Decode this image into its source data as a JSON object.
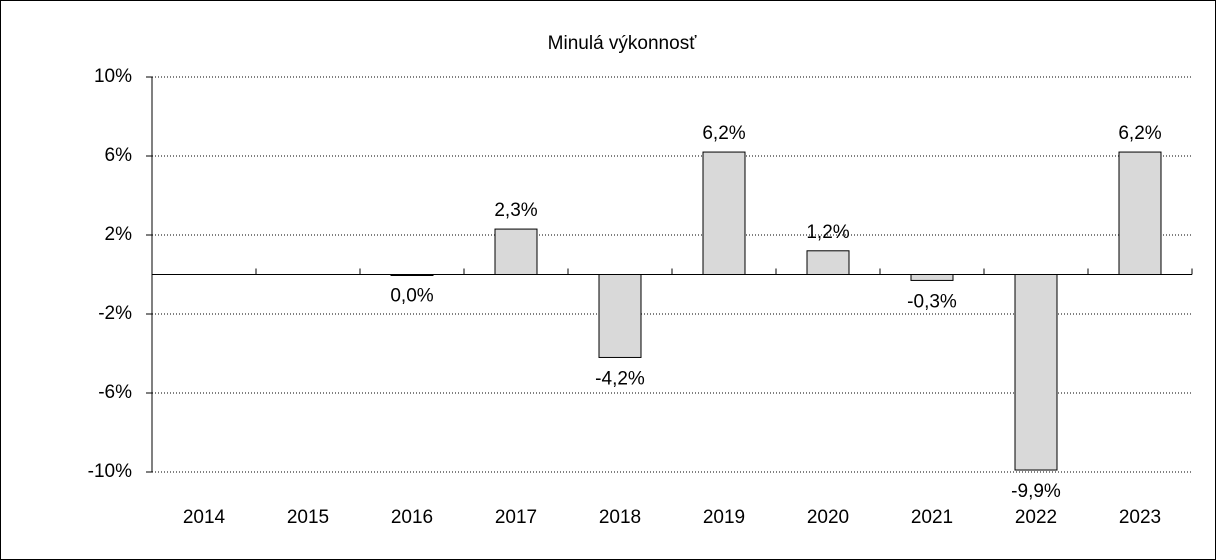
{
  "chart_data": {
    "type": "bar",
    "title": "Minulá výkonnosť",
    "categories": [
      "2014",
      "2015",
      "2016",
      "2017",
      "2018",
      "2019",
      "2020",
      "2021",
      "2022",
      "2023"
    ],
    "values": [
      null,
      null,
      0.0,
      2.3,
      -4.2,
      6.2,
      1.2,
      -0.3,
      -9.9,
      6.2
    ],
    "value_labels": [
      null,
      null,
      "0,0%",
      "2,3%",
      "-4,2%",
      "6,2%",
      "1,2%",
      "-0,3%",
      "-9,9%",
      "6,2%"
    ],
    "color": "#d9d9d9",
    "ylim": [
      -10,
      10
    ],
    "yticks": [
      {
        "value": -10,
        "label": "-10%"
      },
      {
        "value": -6,
        "label": "-6%"
      },
      {
        "value": -2,
        "label": "-2%"
      },
      {
        "value": 2,
        "label": "2%"
      },
      {
        "value": 6,
        "label": "6%"
      },
      {
        "value": 10,
        "label": "10%"
      }
    ],
    "grid": true
  }
}
